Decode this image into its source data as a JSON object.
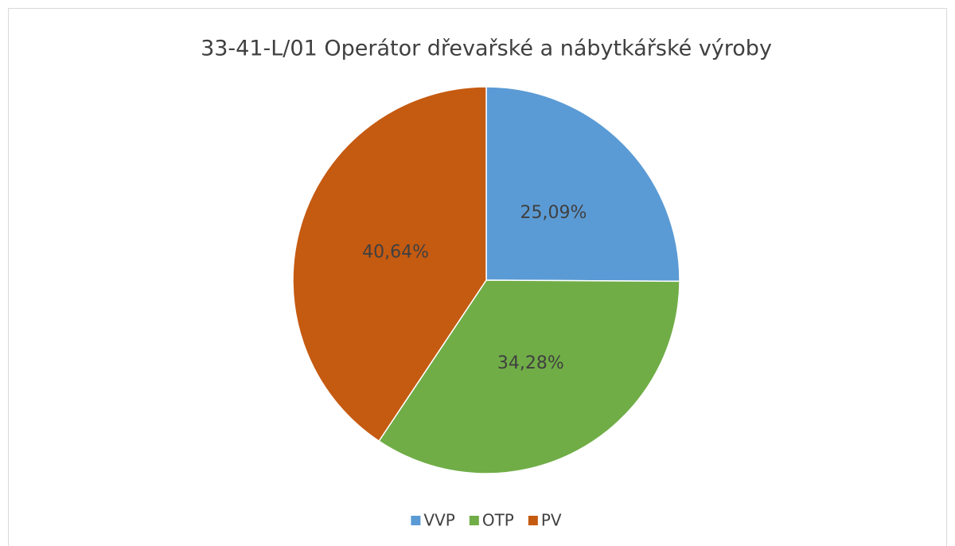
{
  "chart_data": {
    "type": "pie",
    "title": "33-41-L/01 Operátor dřevařské a nábytkářské výroby",
    "categories": [
      "VVP",
      "OTP",
      "PV"
    ],
    "values": [
      25.09,
      34.28,
      40.64
    ],
    "value_labels": [
      "25,09%",
      "34,28%",
      "40,64%"
    ],
    "colors": [
      "#5b9bd5",
      "#70ad47",
      "#c55a11"
    ],
    "legend": "bottom"
  }
}
